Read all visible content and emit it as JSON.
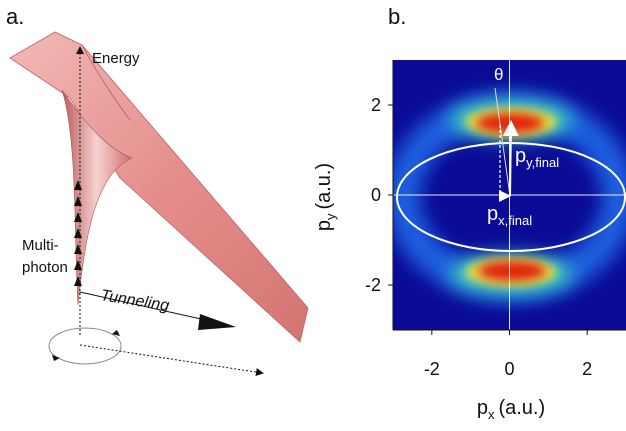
{
  "panel_a": {
    "label": "a.",
    "energy_label": "Energy",
    "multiphoton_label": [
      "Multi-",
      "photon"
    ],
    "tunneling_label": "Tunneling"
  },
  "panel_b": {
    "label": "b.",
    "x_label": {
      "main": "p",
      "sub": "x",
      "unit": "(a.u.)"
    },
    "y_label": {
      "main": "p",
      "sub": "y",
      "unit": "(a.u.)"
    },
    "xlim": [
      -3,
      3
    ],
    "ylim": [
      -3,
      3
    ],
    "xticks": [
      -2,
      0,
      2
    ],
    "yticks": [
      -2,
      0,
      2
    ],
    "theta_label": "θ",
    "py_final_label": {
      "main": "p",
      "sub": "y,final"
    },
    "px_final_label": {
      "main": "p",
      "sub": "x,final"
    }
  }
}
